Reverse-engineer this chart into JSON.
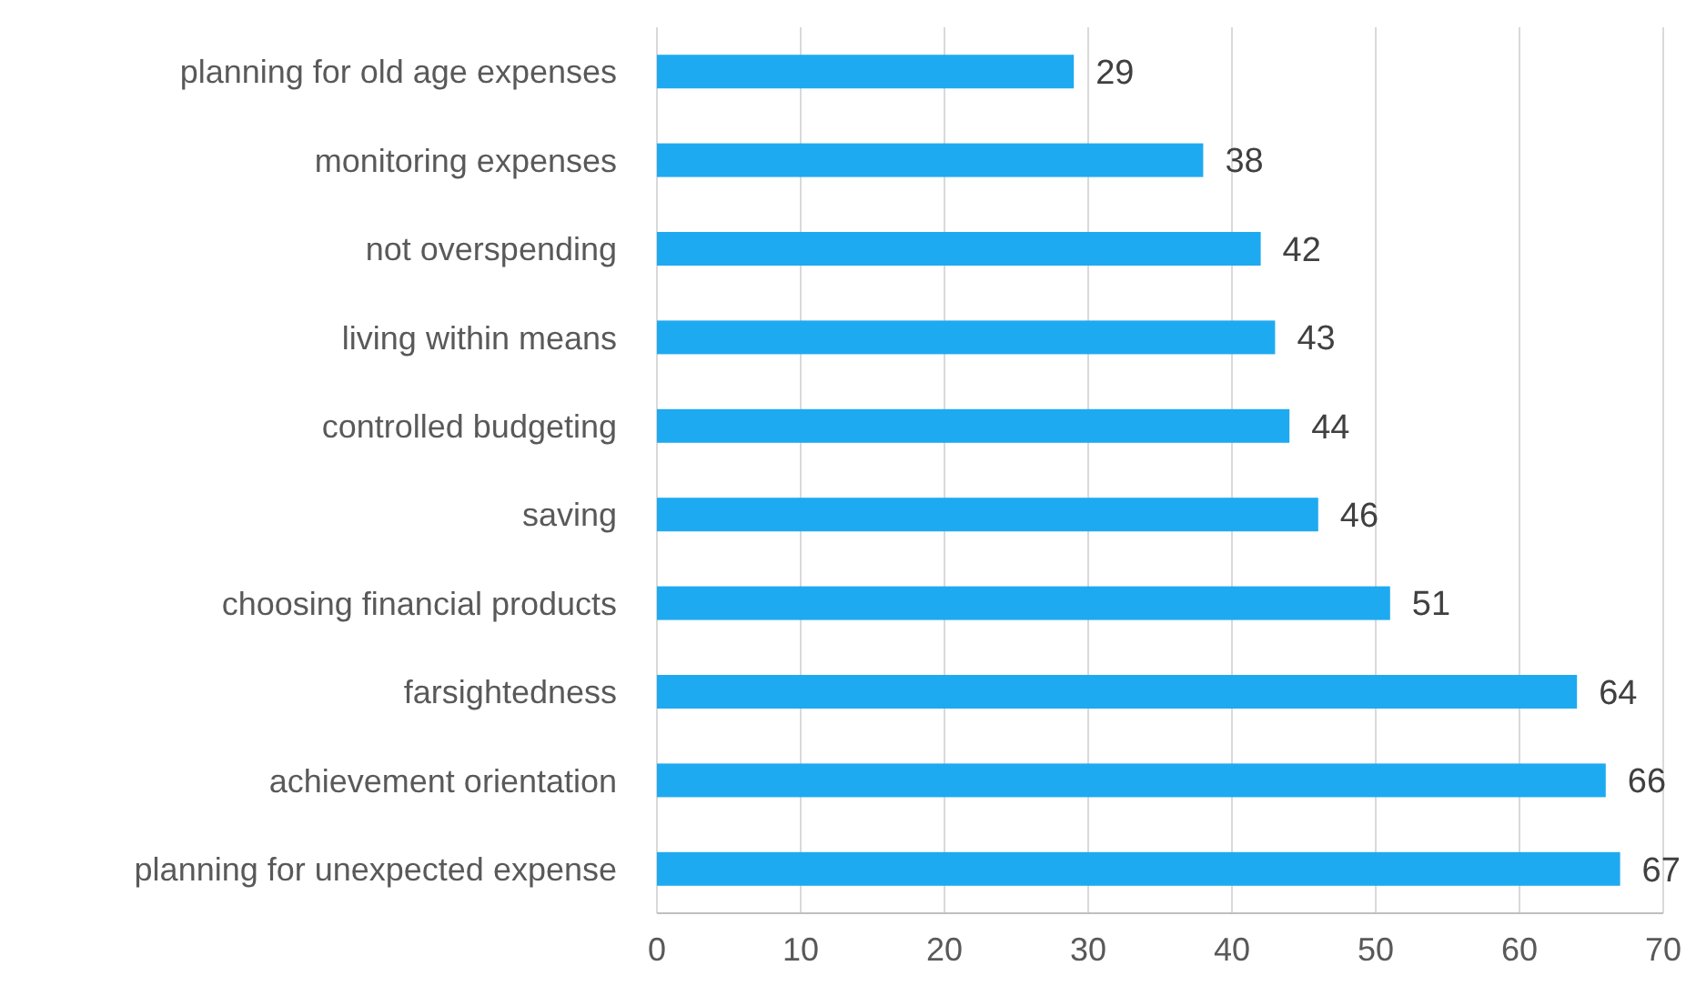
{
  "chart_data": {
    "type": "bar",
    "orientation": "horizontal",
    "categories": [
      "planning for old age expenses",
      "monitoring expenses",
      "not overspending",
      "living within means",
      "controlled budgeting",
      "saving",
      "choosing financial products",
      "farsightedness",
      "achievement orientation",
      "planning for unexpected expense"
    ],
    "values": [
      29,
      38,
      42,
      43,
      44,
      46,
      51,
      64,
      66,
      67
    ],
    "color": "#1eaaf1",
    "xlim": [
      0,
      70
    ],
    "xticks": [
      0,
      10,
      20,
      30,
      40,
      50,
      60,
      70
    ],
    "grid": "x",
    "data_labels": true
  }
}
